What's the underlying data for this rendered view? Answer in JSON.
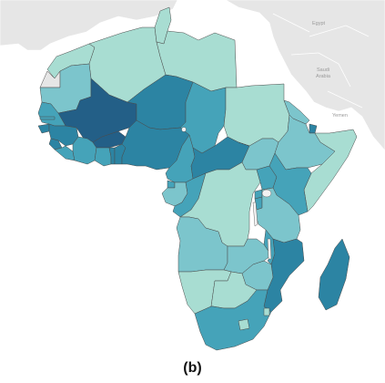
{
  "map": {
    "caption": "(b)",
    "colors": {
      "ocean": "#ffffff",
      "non_africa_land": "#e6e6e6",
      "non_africa_border": "#ffffff",
      "border": "#4a4a4a",
      "lake": "#f2f2f2",
      "level1": "#a8ddd2",
      "level2": "#7cc5cc",
      "level3": "#45a3b9",
      "level4": "#2c84a3",
      "level5": "#235f87"
    },
    "background_labels": [
      "Egypt",
      "Saudi Arabia",
      "Yemen"
    ],
    "regions": [
      {
        "name": "Morocco",
        "level": 1
      },
      {
        "name": "Western Sahara",
        "level": 0
      },
      {
        "name": "Algeria",
        "level": 1
      },
      {
        "name": "Tunisia",
        "level": 1
      },
      {
        "name": "Libya",
        "level": 1
      },
      {
        "name": "Mauritania",
        "level": 2
      },
      {
        "name": "Mali",
        "level": 5
      },
      {
        "name": "Niger",
        "level": 4
      },
      {
        "name": "Chad",
        "level": 3
      },
      {
        "name": "Sudan",
        "level": 1
      },
      {
        "name": "Senegal",
        "level": 3
      },
      {
        "name": "Gambia",
        "level": 3
      },
      {
        "name": "Guinea-Bissau",
        "level": 4
      },
      {
        "name": "Guinea",
        "level": 4
      },
      {
        "name": "Sierra Leone",
        "level": 4
      },
      {
        "name": "Liberia",
        "level": 3
      },
      {
        "name": "Cote d'Ivoire",
        "level": 3
      },
      {
        "name": "Burkina Faso",
        "level": 5
      },
      {
        "name": "Ghana",
        "level": 3
      },
      {
        "name": "Togo",
        "level": 4
      },
      {
        "name": "Benin",
        "level": 4
      },
      {
        "name": "Nigeria",
        "level": 4
      },
      {
        "name": "Cameroon",
        "level": 3
      },
      {
        "name": "Central African Republic",
        "level": 4
      },
      {
        "name": "South Sudan",
        "level": 2
      },
      {
        "name": "Eritrea",
        "level": 2
      },
      {
        "name": "Djibouti",
        "level": 4
      },
      {
        "name": "Ethiopia",
        "level": 2
      },
      {
        "name": "Somalia",
        "level": 1
      },
      {
        "name": "Equatorial Guinea",
        "level": 3
      },
      {
        "name": "Gabon",
        "level": 2
      },
      {
        "name": "Congo",
        "level": 3
      },
      {
        "name": "DR Congo",
        "level": 1
      },
      {
        "name": "Uganda",
        "level": 3
      },
      {
        "name": "Kenya",
        "level": 3
      },
      {
        "name": "Rwanda",
        "level": 3
      },
      {
        "name": "Burundi",
        "level": 3
      },
      {
        "name": "Tanzania",
        "level": 2
      },
      {
        "name": "Angola",
        "level": 2
      },
      {
        "name": "Zambia",
        "level": 2
      },
      {
        "name": "Malawi",
        "level": 3
      },
      {
        "name": "Mozambique",
        "level": 4
      },
      {
        "name": "Madagascar",
        "level": 2
      },
      {
        "name": "Namibia",
        "level": 1
      },
      {
        "name": "Botswana",
        "level": 1
      },
      {
        "name": "Zimbabwe",
        "level": 3
      },
      {
        "name": "South Africa",
        "level": 1
      },
      {
        "name": "Lesotho",
        "level": 1
      },
      {
        "name": "Eswatini",
        "level": 4
      }
    ]
  }
}
